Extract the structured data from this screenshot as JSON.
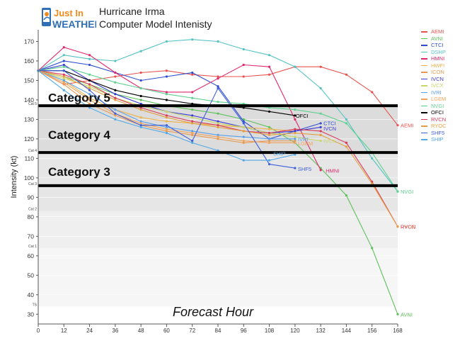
{
  "header": {
    "logo_line1": "Just In",
    "logo_line2": "WEATHER",
    "title_line1": "Hurricane Irma",
    "title_line2": "Computer Model Intenisty"
  },
  "colors": {
    "logo_blue": "#2f6fb5",
    "logo_orange": "#f08a1c",
    "band_dark": "#dcdcdc",
    "band_mid": "#e6e6e6",
    "band_light": "#efefef",
    "band_lightest": "#f6f6f6",
    "threshold_line": "#000000"
  },
  "chart_data": {
    "type": "line",
    "title": "Hurricane Irma Computer Model Intenisty",
    "xlabel": "Forecast Hour",
    "ylabel": "Intensity (kt)",
    "xlim": [
      0,
      168
    ],
    "ylim": [
      25,
      176
    ],
    "xticks": [
      0,
      12,
      24,
      36,
      48,
      60,
      72,
      84,
      96,
      108,
      120,
      132,
      144,
      156,
      168
    ],
    "yticks": [
      30,
      40,
      50,
      60,
      70,
      80,
      90,
      100,
      110,
      120,
      130,
      140,
      150,
      160,
      170
    ],
    "category_ticks": [
      {
        "label": "TS",
        "value": 34
      },
      {
        "label": "Cat 1",
        "value": 64
      },
      {
        "label": "Cat 2",
        "value": 83
      },
      {
        "label": "Cat 3",
        "value": 96
      },
      {
        "label": "Cat 4",
        "value": 113
      },
      {
        "label": "Cat 5",
        "value": 137
      }
    ],
    "category_bands": [
      {
        "label": "Category 5",
        "from": 137,
        "to": 176,
        "label_y": 139
      },
      {
        "label": "Category 4",
        "from": 113,
        "to": 137,
        "label_y": 120
      },
      {
        "label": "Category 3",
        "from": 96,
        "to": 113,
        "label_y": 101
      }
    ],
    "threshold_lines": [
      137,
      113,
      96
    ],
    "legend_position": "right",
    "series": [
      {
        "name": "AEMI",
        "color": "#e8524f",
        "label": "AEMI",
        "x": [
          0,
          12,
          24,
          36,
          48,
          60,
          72,
          84,
          96,
          108,
          120,
          132,
          144,
          156,
          168
        ],
        "y": [
          155,
          148,
          150,
          152,
          154,
          155,
          153,
          152,
          152,
          153,
          157,
          157,
          153,
          144,
          127
        ]
      },
      {
        "name": "AVNI",
        "color": "#5ec05a",
        "label": "AVNI",
        "x": [
          0,
          12,
          24,
          36,
          48,
          60,
          72,
          84,
          96,
          108,
          120,
          132,
          144,
          156,
          168
        ],
        "y": [
          155,
          152,
          148,
          143,
          140,
          137,
          135,
          133,
          130,
          126,
          118,
          105,
          91,
          64,
          30
        ]
      },
      {
        "name": "CTCI",
        "color": "#2f4fcf",
        "label": "CTCI",
        "x": [
          0,
          12,
          24,
          36,
          48,
          60,
          72,
          84,
          96,
          108,
          120,
          132
        ],
        "y": [
          155,
          160,
          158,
          154,
          150,
          152,
          154,
          147,
          129,
          120,
          124,
          128
        ]
      },
      {
        "name": "DSHP",
        "color": "#55c2c4",
        "label": "",
        "x": [
          0,
          12,
          24,
          36,
          48,
          60,
          72,
          84,
          96,
          108,
          120,
          132,
          144,
          156,
          168
        ],
        "y": [
          155,
          163,
          161,
          160,
          165,
          170,
          171,
          170,
          166,
          163,
          157,
          146,
          130,
          110,
          93
        ]
      },
      {
        "name": "HMNI",
        "color": "#e0286e",
        "label": "HMNI",
        "x": [
          0,
          12,
          24,
          36,
          48,
          60,
          72,
          84,
          96,
          108,
          120,
          132
        ],
        "y": [
          155,
          167,
          163,
          154,
          146,
          144,
          144,
          151,
          158,
          157,
          130,
          104
        ]
      },
      {
        "name": "HWFI",
        "color": "#f0b24a",
        "label": "",
        "x": [
          0,
          12,
          24,
          36,
          48,
          60,
          72,
          84,
          96,
          108,
          120
        ],
        "y": [
          155,
          150,
          141,
          135,
          131,
          129,
          128,
          127,
          126,
          125,
          124
        ]
      },
      {
        "name": "ICON",
        "color": "#e89a55",
        "label": "",
        "x": [
          0,
          12,
          24,
          36,
          48,
          60,
          72,
          84,
          96,
          108,
          120
        ],
        "y": [
          155,
          148,
          138,
          132,
          127,
          124,
          122,
          120,
          118,
          119,
          119
        ]
      },
      {
        "name": "IVCN",
        "color": "#3a3ad6",
        "label": "IVCN",
        "x": [
          0,
          12,
          24,
          36,
          48,
          60,
          72,
          84,
          96,
          108,
          120,
          132
        ],
        "y": [
          155,
          158,
          150,
          143,
          138,
          134,
          132,
          129,
          126,
          123,
          124,
          126
        ]
      },
      {
        "name": "IVCX",
        "color": "#c8d66a",
        "label": "IVCX",
        "x": [
          0,
          12,
          24,
          36,
          48,
          60,
          72,
          84,
          96,
          108,
          120,
          132
        ],
        "y": [
          155,
          151,
          147,
          141,
          137,
          134,
          131,
          128,
          126,
          123,
          121,
          119
        ]
      },
      {
        "name": "IVRI",
        "color": "#5aa0ea",
        "label": "IVRI",
        "x": [
          0,
          12,
          24,
          36,
          48,
          60,
          72,
          84,
          96,
          108,
          120
        ],
        "y": [
          155,
          150,
          143,
          135,
          129,
          126,
          124,
          122,
          121,
          120,
          120
        ]
      },
      {
        "name": "LGEM",
        "color": "#f2a35a",
        "label": "LGEM",
        "x": [
          0,
          12,
          24,
          36,
          48,
          60,
          72,
          84,
          96,
          108,
          120
        ],
        "y": [
          155,
          149,
          140,
          133,
          128,
          125,
          123,
          121,
          119,
          118,
          118
        ]
      },
      {
        "name": "NVGI",
        "color": "#5fd190",
        "label": "NVGI",
        "x": [
          0,
          12,
          24,
          36,
          48,
          60,
          72,
          84,
          96,
          108,
          120,
          132,
          144,
          156,
          168
        ],
        "y": [
          155,
          157,
          153,
          149,
          146,
          143,
          141,
          139,
          138,
          136,
          135,
          133,
          128,
          113,
          93
        ]
      },
      {
        "name": "OFCI",
        "color": "#000000",
        "label": "OFCI",
        "x": [
          0,
          12,
          24,
          36,
          48,
          60,
          72,
          84,
          96,
          108,
          120
        ],
        "y": [
          155,
          155,
          150,
          145,
          142,
          140,
          138,
          137,
          136,
          134,
          132
        ]
      },
      {
        "name": "RVCN",
        "color": "#d83a5a",
        "label": "",
        "x": [
          0,
          12,
          24,
          36,
          48,
          60,
          72,
          84,
          96,
          108,
          120,
          132,
          144,
          156,
          168
        ],
        "y": [
          155,
          153,
          148,
          141,
          136,
          132,
          129,
          127,
          124,
          123,
          125,
          124,
          118,
          98,
          75
        ]
      },
      {
        "name": "RYOC",
        "color": "#e3a040",
        "label": "RYOC",
        "x": [
          0,
          12,
          24,
          36,
          48,
          60,
          72,
          84,
          96,
          108,
          120,
          132,
          144,
          156,
          168
        ],
        "y": [
          155,
          152,
          146,
          140,
          135,
          131,
          128,
          126,
          124,
          122,
          123,
          122,
          116,
          97,
          75
        ]
      },
      {
        "name": "SHF5",
        "color": "#3d5fd9",
        "label": "SHF5",
        "x": [
          0,
          12,
          24,
          36,
          48,
          60,
          72,
          84,
          96,
          108,
          120
        ],
        "y": [
          155,
          155,
          145,
          133,
          127,
          127,
          119,
          146,
          128,
          107,
          105
        ]
      },
      {
        "name": "SHIP",
        "color": "#52a8e8",
        "label": "SHIP",
        "x": [
          0,
          12,
          24,
          36,
          48,
          60,
          72,
          84,
          96,
          108,
          120
        ],
        "y": [
          155,
          145,
          136,
          130,
          126,
          123,
          118,
          114,
          109,
          109,
          112
        ]
      }
    ],
    "annotations": [
      {
        "text": "OFCI",
        "x": 120,
        "y": 132,
        "color": "#000000"
      },
      {
        "text": "CTCI",
        "x": 133,
        "y": 128.2,
        "color": "#2f4fcf"
      },
      {
        "text": "IVCN",
        "x": 133,
        "y": 125.4,
        "color": "#3a3ad6"
      },
      {
        "text": "IVRI",
        "x": 121,
        "y": 120,
        "color": "#5aa0ea"
      },
      {
        "text": "LGEM",
        "x": 121,
        "y": 117.8,
        "color": "#f2a35a"
      },
      {
        "text": "IVCX",
        "x": 133,
        "y": 119,
        "color": "#c8d66a"
      },
      {
        "text": "SHIP",
        "x": 109.5,
        "y": 112.5,
        "color": "#52a8e8"
      },
      {
        "text": "SHF5",
        "x": 121,
        "y": 104.6,
        "color": "#3d5fd9"
      },
      {
        "text": "HMNI",
        "x": 134,
        "y": 103.8,
        "color": "#e0286e"
      },
      {
        "text": "AEMI",
        "x": 169,
        "y": 127,
        "color": "#e8524f"
      },
      {
        "text": "NVGI",
        "x": 169,
        "y": 93,
        "color": "#5fd190"
      },
      {
        "text": "RYOC",
        "x": 169,
        "y": 75,
        "color": "#e3a040"
      },
      {
        "text": "RVCN",
        "x": 169,
        "y": 75,
        "color": "#d83a5a"
      },
      {
        "text": "AVNI",
        "x": 169,
        "y": 30,
        "color": "#5ec05a"
      }
    ]
  }
}
